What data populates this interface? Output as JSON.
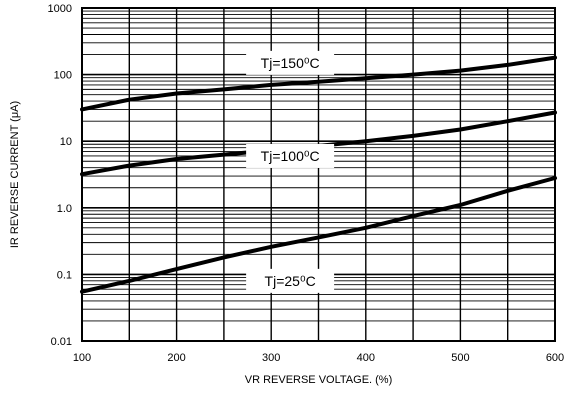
{
  "chart_data": {
    "type": "line",
    "title": "",
    "xlabel": "VR REVERSE VOLTAGE. (%)",
    "ylabel": "IR REVERSE CURRENT (μA)",
    "xlim": [
      100,
      600
    ],
    "ylim": [
      0.01,
      1000
    ],
    "yscale": "log",
    "x_ticks": [
      100,
      200,
      300,
      400,
      500,
      600
    ],
    "x_tick_labels": [
      "100",
      "200",
      "300",
      "400",
      "500",
      "600"
    ],
    "y_ticks": [
      0.01,
      0.1,
      1,
      10,
      100,
      1000
    ],
    "y_tick_labels": [
      "0.01",
      "0.1",
      "1.0",
      "10",
      "100",
      "1000"
    ],
    "grid": true,
    "series": [
      {
        "name": "Tj=150⁰C",
        "x": [
          100,
          150,
          200,
          250,
          300,
          350,
          400,
          450,
          500,
          550,
          600
        ],
        "y": [
          30,
          42,
          52,
          60,
          70,
          78,
          88,
          100,
          115,
          140,
          180
        ]
      },
      {
        "name": "Tj=100⁰C",
        "x": [
          100,
          150,
          200,
          250,
          300,
          350,
          400,
          450,
          500,
          550,
          600
        ],
        "y": [
          3.2,
          4.3,
          5.4,
          6.3,
          7.3,
          8.5,
          10,
          12,
          15,
          20,
          27
        ]
      },
      {
        "name": "Tj=25⁰C",
        "x": [
          100,
          150,
          200,
          250,
          300,
          350,
          400,
          450,
          500,
          550,
          600
        ],
        "y": [
          0.055,
          0.08,
          0.12,
          0.18,
          0.26,
          0.36,
          0.5,
          0.75,
          1.1,
          1.8,
          2.8
        ]
      }
    ],
    "annotations": [
      {
        "text": "Tj=150⁰C",
        "x": 320,
        "y": 150
      },
      {
        "text": "Tj=100⁰C",
        "x": 320,
        "y": 6
      },
      {
        "text": "Tj=25⁰C",
        "x": 320,
        "y": 0.08
      }
    ]
  }
}
